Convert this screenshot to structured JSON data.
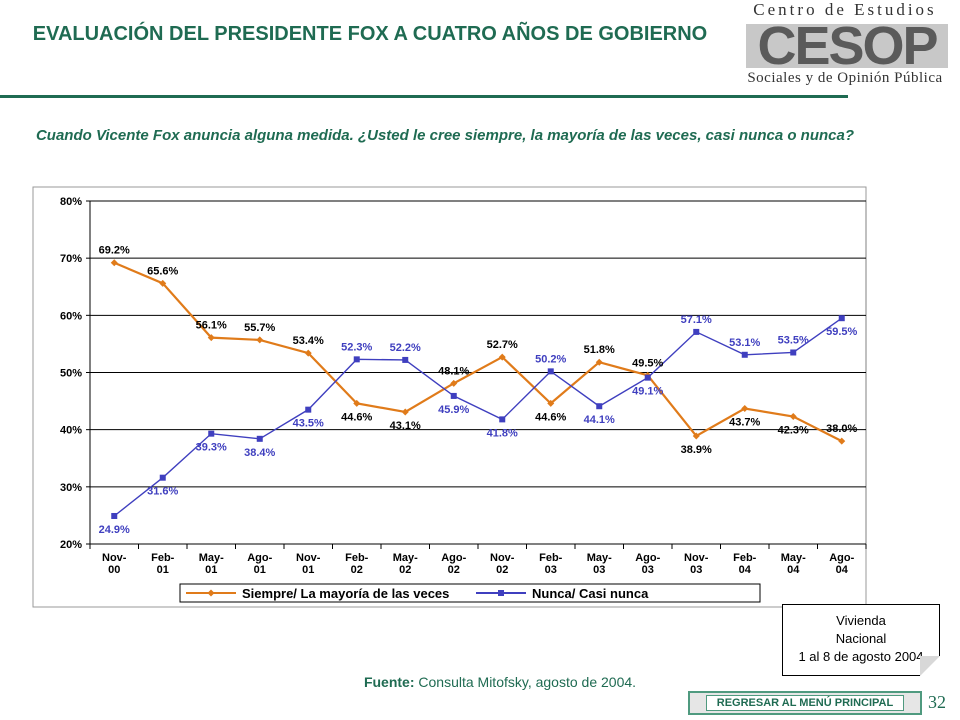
{
  "header": {
    "title": "EVALUACIÓN DEL PRESIDENTE FOX A CUATRO AÑOS DE GOBIERNO",
    "logo_top": "Centro de Estudios",
    "logo_mark": "CESOP",
    "logo_bottom": "Sociales y de Opinión Pública"
  },
  "question": "Cuando Vicente Fox anuncia alguna medida. ¿Usted le cree siempre, la mayoría de las veces, casi nunca o nunca?",
  "chart_data": {
    "type": "line",
    "categories": [
      [
        "Nov-",
        "00"
      ],
      [
        "Feb-",
        "01"
      ],
      [
        "May-",
        "01"
      ],
      [
        "Ago-",
        "01"
      ],
      [
        "Nov-",
        "01"
      ],
      [
        "Feb-",
        "02"
      ],
      [
        "May-",
        "02"
      ],
      [
        "Ago-",
        "02"
      ],
      [
        "Nov-",
        "02"
      ],
      [
        "Feb-",
        "03"
      ],
      [
        "May-",
        "03"
      ],
      [
        "Ago-",
        "03"
      ],
      [
        "Nov-",
        "03"
      ],
      [
        "Feb-",
        "04"
      ],
      [
        "May-",
        "04"
      ],
      [
        "Ago-",
        "04"
      ]
    ],
    "series": [
      {
        "name": "Siempre/ La mayoría de las veces",
        "color": "#e07b1a",
        "values": [
          69.2,
          65.6,
          56.1,
          55.7,
          53.4,
          44.6,
          43.1,
          48.1,
          52.7,
          44.6,
          51.8,
          49.5,
          38.9,
          43.7,
          42.3,
          38.0
        ],
        "labels": [
          "69.2%",
          "65.6%",
          "56.1%",
          "55.7%",
          "53.4%",
          "44.6%",
          "43.1%",
          "48.1%",
          "52.7%",
          "44.6%",
          "51.8%",
          "49.5%",
          "38.9%",
          "43.7%",
          "42.3%",
          "38.0%"
        ]
      },
      {
        "name": "Nunca/ Casi nunca",
        "color": "#3f3fbf",
        "values": [
          24.9,
          31.6,
          39.3,
          38.4,
          43.5,
          52.3,
          52.2,
          45.9,
          41.8,
          50.2,
          44.1,
          49.1,
          57.1,
          53.1,
          53.5,
          59.5
        ],
        "labels": [
          "24.9%",
          "31.6%",
          "39.3%",
          "38.4%",
          "43.5%",
          "52.3%",
          "52.2%",
          "45.9%",
          "41.8%",
          "50.2%",
          "44.1%",
          "49.1%",
          "57.1%",
          "53.1%",
          "53.5%",
          "59.5%"
        ]
      }
    ],
    "ylim": [
      20,
      80
    ],
    "yticks": [
      20,
      30,
      40,
      50,
      60,
      70,
      80
    ],
    "ytick_labels": [
      "20%",
      "30%",
      "40%",
      "50%",
      "60%",
      "70%",
      "80%"
    ],
    "grid": true,
    "legend": "bottom"
  },
  "note": {
    "line1": "Vivienda",
    "line2": "Nacional",
    "line3": "1 al 8 de agosto 2004"
  },
  "source": {
    "label": "Fuente:",
    "text": " Consulta Mitofsky,  agosto de 2004."
  },
  "menu_button_label": "REGRESAR AL MENÚ PRINCIPAL",
  "page_number": "32"
}
